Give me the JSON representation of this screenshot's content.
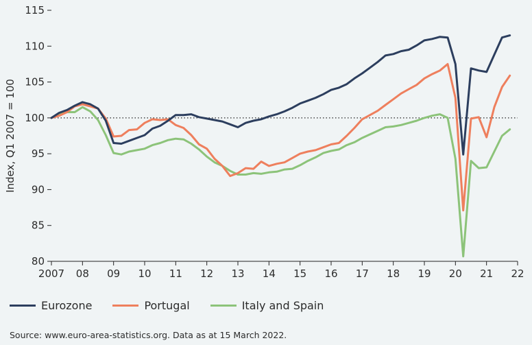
{
  "chart_data": {
    "type": "line",
    "ylabel": "Index, Q1 2007 = 100",
    "ylim": [
      80,
      115
    ],
    "yticks": [
      "80",
      "85",
      "90",
      "95",
      "100",
      "105",
      "110",
      "115"
    ],
    "xlim": [
      2007,
      2022
    ],
    "xticks": [
      "2007",
      "08",
      "09",
      "10",
      "11",
      "12",
      "13",
      "14",
      "15",
      "16",
      "17",
      "18",
      "19",
      "20",
      "21",
      "22"
    ],
    "reference_line": 100,
    "source": "Source: www.euro-area-statistics.org. Data as at 15 March 2022.",
    "series": [
      {
        "name": "Eurozone",
        "color": "#2c3e5e",
        "points": [
          [
            2007.0,
            100.0
          ],
          [
            2007.25,
            100.7
          ],
          [
            2007.5,
            101.1
          ],
          [
            2007.75,
            101.7
          ],
          [
            2008.0,
            102.2
          ],
          [
            2008.25,
            101.9
          ],
          [
            2008.5,
            101.3
          ],
          [
            2008.75,
            99.6
          ],
          [
            2009.0,
            96.5
          ],
          [
            2009.25,
            96.4
          ],
          [
            2009.5,
            96.8
          ],
          [
            2009.75,
            97.2
          ],
          [
            2010.0,
            97.6
          ],
          [
            2010.25,
            98.5
          ],
          [
            2010.5,
            98.9
          ],
          [
            2010.75,
            99.6
          ],
          [
            2011.0,
            100.4
          ],
          [
            2011.25,
            100.4
          ],
          [
            2011.5,
            100.5
          ],
          [
            2011.75,
            100.1
          ],
          [
            2012.0,
            99.9
          ],
          [
            2012.25,
            99.7
          ],
          [
            2012.5,
            99.5
          ],
          [
            2012.75,
            99.1
          ],
          [
            2013.0,
            98.7
          ],
          [
            2013.25,
            99.3
          ],
          [
            2013.5,
            99.6
          ],
          [
            2013.75,
            99.8
          ],
          [
            2014.0,
            100.2
          ],
          [
            2014.25,
            100.5
          ],
          [
            2014.5,
            100.9
          ],
          [
            2014.75,
            101.4
          ],
          [
            2015.0,
            102.0
          ],
          [
            2015.25,
            102.4
          ],
          [
            2015.5,
            102.8
          ],
          [
            2015.75,
            103.3
          ],
          [
            2016.0,
            103.9
          ],
          [
            2016.25,
            104.2
          ],
          [
            2016.5,
            104.7
          ],
          [
            2016.75,
            105.5
          ],
          [
            2017.0,
            106.2
          ],
          [
            2017.25,
            107.0
          ],
          [
            2017.5,
            107.8
          ],
          [
            2017.75,
            108.7
          ],
          [
            2018.0,
            108.9
          ],
          [
            2018.25,
            109.3
          ],
          [
            2018.5,
            109.5
          ],
          [
            2018.75,
            110.1
          ],
          [
            2019.0,
            110.8
          ],
          [
            2019.25,
            111.0
          ],
          [
            2019.5,
            111.3
          ],
          [
            2019.75,
            111.2
          ],
          [
            2020.0,
            107.5
          ],
          [
            2020.25,
            94.9
          ],
          [
            2020.5,
            106.9
          ],
          [
            2020.75,
            106.6
          ],
          [
            2021.0,
            106.4
          ],
          [
            2021.25,
            108.8
          ],
          [
            2021.5,
            111.2
          ],
          [
            2021.75,
            111.5
          ]
        ]
      },
      {
        "name": "Portugal",
        "color": "#ee7f5d",
        "points": [
          [
            2007.0,
            100.0
          ],
          [
            2007.25,
            100.3
          ],
          [
            2007.5,
            100.8
          ],
          [
            2007.75,
            101.6
          ],
          [
            2008.0,
            101.9
          ],
          [
            2008.25,
            101.6
          ],
          [
            2008.5,
            101.3
          ],
          [
            2008.75,
            99.9
          ],
          [
            2009.0,
            97.4
          ],
          [
            2009.25,
            97.5
          ],
          [
            2009.5,
            98.3
          ],
          [
            2009.75,
            98.4
          ],
          [
            2010.0,
            99.3
          ],
          [
            2010.25,
            99.8
          ],
          [
            2010.5,
            99.7
          ],
          [
            2010.75,
            99.8
          ],
          [
            2011.0,
            99.0
          ],
          [
            2011.25,
            98.6
          ],
          [
            2011.5,
            97.6
          ],
          [
            2011.75,
            96.3
          ],
          [
            2012.0,
            95.7
          ],
          [
            2012.25,
            94.3
          ],
          [
            2012.5,
            93.3
          ],
          [
            2012.75,
            91.9
          ],
          [
            2013.0,
            92.3
          ],
          [
            2013.25,
            93.0
          ],
          [
            2013.5,
            92.9
          ],
          [
            2013.75,
            93.9
          ],
          [
            2014.0,
            93.3
          ],
          [
            2014.25,
            93.6
          ],
          [
            2014.5,
            93.8
          ],
          [
            2014.75,
            94.4
          ],
          [
            2015.0,
            95.0
          ],
          [
            2015.25,
            95.3
          ],
          [
            2015.5,
            95.5
          ],
          [
            2015.75,
            95.9
          ],
          [
            2016.0,
            96.3
          ],
          [
            2016.25,
            96.5
          ],
          [
            2016.5,
            97.5
          ],
          [
            2016.75,
            98.6
          ],
          [
            2017.0,
            99.8
          ],
          [
            2017.25,
            100.4
          ],
          [
            2017.5,
            101.0
          ],
          [
            2017.75,
            101.8
          ],
          [
            2018.0,
            102.6
          ],
          [
            2018.25,
            103.4
          ],
          [
            2018.5,
            104.0
          ],
          [
            2018.75,
            104.6
          ],
          [
            2019.0,
            105.5
          ],
          [
            2019.25,
            106.1
          ],
          [
            2019.5,
            106.6
          ],
          [
            2019.75,
            107.5
          ],
          [
            2020.0,
            102.8
          ],
          [
            2020.25,
            87.1
          ],
          [
            2020.5,
            99.9
          ],
          [
            2020.75,
            100.1
          ],
          [
            2021.0,
            97.3
          ],
          [
            2021.25,
            101.5
          ],
          [
            2021.5,
            104.3
          ],
          [
            2021.75,
            105.9
          ]
        ]
      },
      {
        "name": "Italy and Spain",
        "color": "#8cc379",
        "points": [
          [
            2007.0,
            100.0
          ],
          [
            2007.25,
            100.5
          ],
          [
            2007.5,
            100.8
          ],
          [
            2007.75,
            100.8
          ],
          [
            2008.0,
            101.5
          ],
          [
            2008.25,
            100.9
          ],
          [
            2008.5,
            99.7
          ],
          [
            2008.75,
            97.6
          ],
          [
            2009.0,
            95.1
          ],
          [
            2009.25,
            94.9
          ],
          [
            2009.5,
            95.3
          ],
          [
            2009.75,
            95.5
          ],
          [
            2010.0,
            95.7
          ],
          [
            2010.25,
            96.2
          ],
          [
            2010.5,
            96.5
          ],
          [
            2010.75,
            96.9
          ],
          [
            2011.0,
            97.1
          ],
          [
            2011.25,
            97.0
          ],
          [
            2011.5,
            96.4
          ],
          [
            2011.75,
            95.6
          ],
          [
            2012.0,
            94.6
          ],
          [
            2012.25,
            93.8
          ],
          [
            2012.5,
            93.3
          ],
          [
            2012.75,
            92.6
          ],
          [
            2013.0,
            92.1
          ],
          [
            2013.25,
            92.1
          ],
          [
            2013.5,
            92.3
          ],
          [
            2013.75,
            92.2
          ],
          [
            2014.0,
            92.4
          ],
          [
            2014.25,
            92.5
          ],
          [
            2014.5,
            92.8
          ],
          [
            2014.75,
            92.9
          ],
          [
            2015.0,
            93.4
          ],
          [
            2015.25,
            94.0
          ],
          [
            2015.5,
            94.5
          ],
          [
            2015.75,
            95.1
          ],
          [
            2016.0,
            95.4
          ],
          [
            2016.25,
            95.6
          ],
          [
            2016.5,
            96.2
          ],
          [
            2016.75,
            96.6
          ],
          [
            2017.0,
            97.2
          ],
          [
            2017.25,
            97.7
          ],
          [
            2017.5,
            98.2
          ],
          [
            2017.75,
            98.7
          ],
          [
            2018.0,
            98.8
          ],
          [
            2018.25,
            99.0
          ],
          [
            2018.5,
            99.3
          ],
          [
            2018.75,
            99.6
          ],
          [
            2019.0,
            100.0
          ],
          [
            2019.25,
            100.3
          ],
          [
            2019.5,
            100.5
          ],
          [
            2019.75,
            100.0
          ],
          [
            2020.0,
            94.3
          ],
          [
            2020.25,
            80.7
          ],
          [
            2020.5,
            94.0
          ],
          [
            2020.75,
            93.0
          ],
          [
            2021.0,
            93.1
          ],
          [
            2021.25,
            95.3
          ],
          [
            2021.5,
            97.5
          ],
          [
            2021.75,
            98.4
          ]
        ]
      }
    ]
  }
}
